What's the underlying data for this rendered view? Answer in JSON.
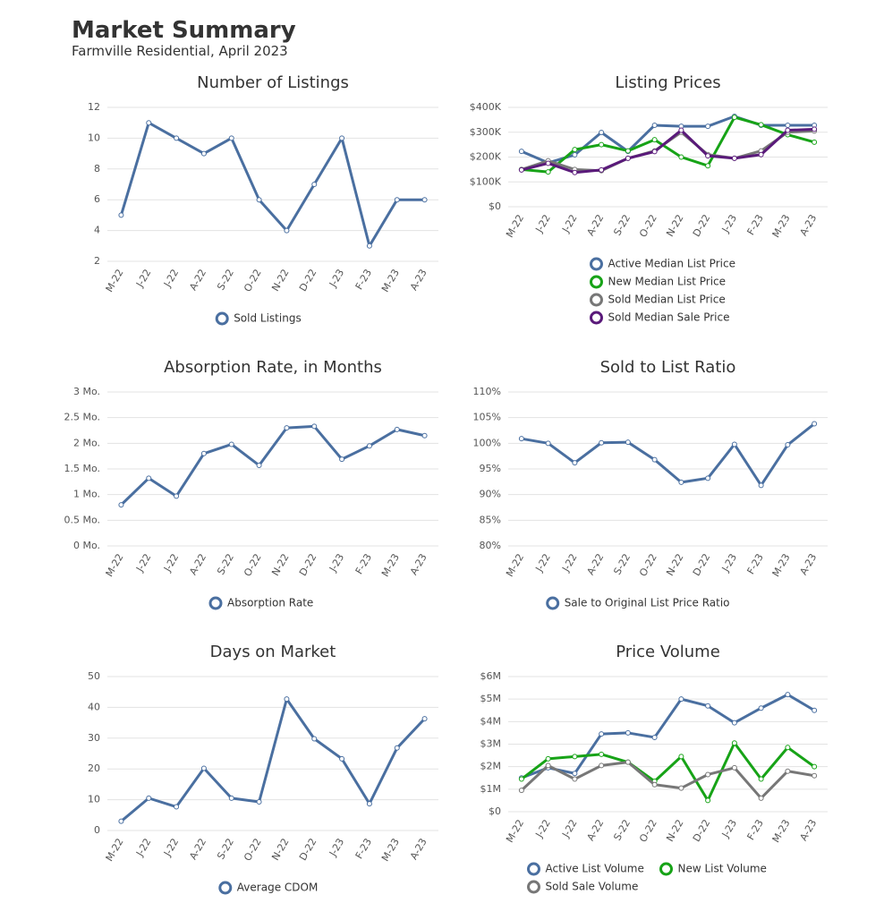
{
  "title": "Market Summary",
  "subtitle": "Farmville Residential, April 2023",
  "chart_data": [
    {
      "type": "line",
      "title": "Number of Listings",
      "categories": [
        "M-22",
        "J-22",
        "J-22",
        "A-22",
        "S-22",
        "O-22",
        "N-22",
        "D-22",
        "J-23",
        "F-23",
        "M-23",
        "A-23"
      ],
      "series": [
        {
          "name": "Sold Listings",
          "color": "#4a6fa0",
          "values": [
            5,
            11,
            10,
            9,
            10,
            6,
            4,
            7,
            10,
            3,
            6,
            6
          ]
        }
      ],
      "ylim": [
        2,
        12
      ],
      "yticks": [
        2,
        4,
        6,
        8,
        10,
        12
      ],
      "grid": true
    },
    {
      "type": "line",
      "title": "Listing Prices",
      "categories": [
        "M-22",
        "J-22",
        "J-22",
        "A-22",
        "S-22",
        "O-22",
        "N-22",
        "D-22",
        "J-23",
        "F-23",
        "M-23",
        "A-23"
      ],
      "series": [
        {
          "name": "Active Median List Price",
          "color": "#4a6fa0",
          "values": [
            223000,
            177000,
            209000,
            299000,
            223000,
            328000,
            324000,
            324000,
            364000,
            328000,
            328000,
            328000
          ]
        },
        {
          "name": "New Median List Price",
          "color": "#17a317",
          "values": [
            150000,
            140000,
            230000,
            250000,
            225000,
            270000,
            200000,
            165000,
            360000,
            330000,
            290000,
            260000
          ]
        },
        {
          "name": "Sold Median List Price",
          "color": "#777777",
          "values": [
            150000,
            185000,
            150000,
            145000,
            195000,
            225000,
            300000,
            210000,
            195000,
            225000,
            300000,
            305000
          ]
        },
        {
          "name": "Sold Median Sale Price",
          "color": "#5a1a7a",
          "values": [
            148000,
            175000,
            138000,
            148000,
            195000,
            222000,
            308000,
            205000,
            195000,
            210000,
            308000,
            312000
          ]
        }
      ],
      "ylim": [
        0,
        400000
      ],
      "yticks": [
        {
          "value": 0,
          "label": "$0"
        },
        {
          "value": 100000,
          "label": "$100K"
        },
        {
          "value": 200000,
          "label": "$200K"
        },
        {
          "value": 300000,
          "label": "$300K"
        },
        {
          "value": 400000,
          "label": "$400K"
        }
      ],
      "grid": true
    },
    {
      "type": "line",
      "title": "Absorption Rate, in Months",
      "categories": [
        "M-22",
        "J-22",
        "J-22",
        "A-22",
        "S-22",
        "O-22",
        "N-22",
        "D-22",
        "J-23",
        "F-23",
        "M-23",
        "A-23"
      ],
      "series": [
        {
          "name": "Absorption Rate",
          "color": "#4a6fa0",
          "values": [
            0.8,
            1.32,
            0.97,
            1.8,
            1.98,
            1.57,
            2.3,
            2.33,
            1.69,
            1.95,
            2.27,
            2.15
          ]
        }
      ],
      "ylim": [
        0,
        3
      ],
      "yticks": [
        {
          "value": 0,
          "label": "0 Mo."
        },
        {
          "value": 0.5,
          "label": "0.5 Mo."
        },
        {
          "value": 1,
          "label": "1 Mo."
        },
        {
          "value": 1.5,
          "label": "1.5 Mo."
        },
        {
          "value": 2,
          "label": "2 Mo."
        },
        {
          "value": 2.5,
          "label": "2.5 Mo."
        },
        {
          "value": 3,
          "label": "3 Mo."
        }
      ],
      "grid": true
    },
    {
      "type": "line",
      "title": "Sold to List Ratio",
      "categories": [
        "M-22",
        "J-22",
        "J-22",
        "A-22",
        "S-22",
        "O-22",
        "N-22",
        "D-22",
        "J-23",
        "F-23",
        "M-23",
        "A-23"
      ],
      "series": [
        {
          "name": "Sale to Original List Price Ratio",
          "color": "#4a6fa0",
          "values": [
            100.9,
            100,
            96.2,
            100.1,
            100.2,
            96.8,
            92.4,
            93.2,
            99.8,
            91.8,
            99.7,
            103.8
          ]
        }
      ],
      "ylim": [
        80,
        110
      ],
      "yticks": [
        {
          "value": 80,
          "label": "80%"
        },
        {
          "value": 85,
          "label": "85%"
        },
        {
          "value": 90,
          "label": "90%"
        },
        {
          "value": 95,
          "label": "95%"
        },
        {
          "value": 100,
          "label": "100%"
        },
        {
          "value": 105,
          "label": "105%"
        },
        {
          "value": 110,
          "label": "110%"
        }
      ],
      "grid": true
    },
    {
      "type": "line",
      "title": "Days on Market",
      "categories": [
        "M-22",
        "J-22",
        "J-22",
        "A-22",
        "S-22",
        "O-22",
        "N-22",
        "D-22",
        "J-23",
        "F-23",
        "M-23",
        "A-23"
      ],
      "series": [
        {
          "name": "Average CDOM",
          "color": "#4a6fa0",
          "values": [
            3,
            10.5,
            7.7,
            20.2,
            10.5,
            9.3,
            42.7,
            29.8,
            23.3,
            8.7,
            26.8,
            36.3
          ]
        }
      ],
      "ylim": [
        0,
        50
      ],
      "yticks": [
        0,
        10,
        20,
        30,
        40,
        50
      ],
      "grid": true
    },
    {
      "type": "line",
      "title": "Price Volume",
      "categories": [
        "M-22",
        "J-22",
        "J-22",
        "A-22",
        "S-22",
        "O-22",
        "N-22",
        "D-22",
        "J-23",
        "F-23",
        "M-23",
        "A-23"
      ],
      "series": [
        {
          "name": "Active List Volume",
          "color": "#4a6fa0",
          "values": [
            1500000,
            1950000,
            1700000,
            3450000,
            3500000,
            3300000,
            5000000,
            4700000,
            3950000,
            4600000,
            5200000,
            4500000
          ]
        },
        {
          "name": "New List Volume",
          "color": "#17a317",
          "values": [
            1450000,
            2350000,
            2450000,
            2550000,
            2200000,
            1350000,
            2450000,
            500000,
            3050000,
            1450000,
            2850000,
            2000000
          ]
        },
        {
          "name": "Sold Sale Volume",
          "color": "#777777",
          "values": [
            950000,
            2050000,
            1450000,
            2050000,
            2200000,
            1200000,
            1050000,
            1650000,
            1950000,
            600000,
            1800000,
            1600000
          ]
        }
      ],
      "ylim": [
        0,
        6000000
      ],
      "yticks": [
        {
          "value": 0,
          "label": "$0"
        },
        {
          "value": 1000000,
          "label": "$1M"
        },
        {
          "value": 2000000,
          "label": "$2M"
        },
        {
          "value": 3000000,
          "label": "$3M"
        },
        {
          "value": 4000000,
          "label": "$4M"
        },
        {
          "value": 5000000,
          "label": "$5M"
        },
        {
          "value": 6000000,
          "label": "$6M"
        }
      ],
      "grid": true
    }
  ]
}
